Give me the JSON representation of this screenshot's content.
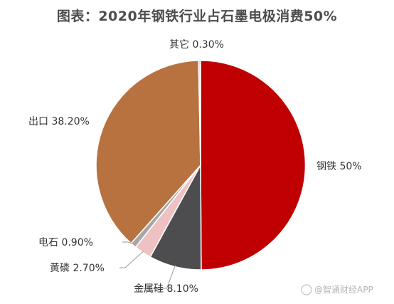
{
  "chart_data": {
    "type": "pie",
    "title": "图表：2020年钢铁行业占石墨电极消费50%",
    "slices": [
      {
        "label": "钢铁",
        "value": 50,
        "display": "钢铁 50%",
        "color": "#c00000"
      },
      {
        "label": "金属硅",
        "value": 8.1,
        "display": "金属硅 8.10%",
        "color": "#4d4d4f"
      },
      {
        "label": "黄磷",
        "value": 2.7,
        "display": "黄磷 2.70%",
        "color": "#eec2c2"
      },
      {
        "label": "电石",
        "value": 0.9,
        "display": "电石 0.90%",
        "color": "#a6a6a6"
      },
      {
        "label": "出口",
        "value": 38.2,
        "display": "出口 38.20%",
        "color": "#b87240"
      },
      {
        "label": "其它",
        "value": 0.3,
        "display": "其它 0.30%",
        "color": "#f2dccf"
      }
    ]
  },
  "watermark": {
    "text": "@智通财经APP",
    "icon": "weibo-icon"
  }
}
